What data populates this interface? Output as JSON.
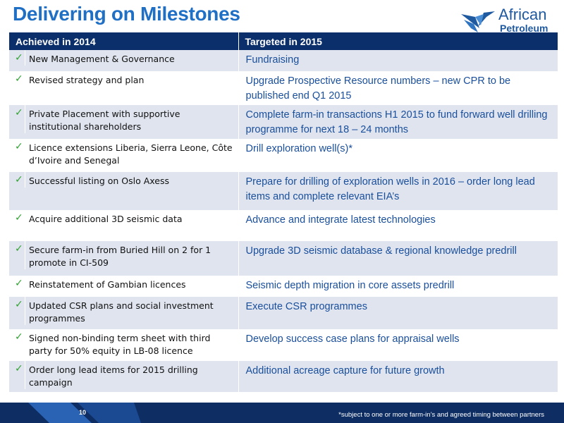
{
  "slide": {
    "title": "Delivering on Milestones",
    "page_number": "10",
    "footnote": "*subject to one or more farm-in’s and  agreed timing between partners"
  },
  "logo": {
    "line1": "African",
    "line2": "Petroleum"
  },
  "table": {
    "headers": {
      "achieved": "Achieved in 2014",
      "targeted": "Targeted in 2015"
    },
    "rows": [
      {
        "achieved": "New Management & Governance",
        "targeted": "Fundraising"
      },
      {
        "achieved": "Revised strategy and plan",
        "targeted": "Upgrade Prospective Resource numbers – new CPR to be published end Q1 2015"
      },
      {
        "achieved": "Private Placement with supportive institutional shareholders",
        "targeted": "Complete farm-in transactions H1 2015 to fund forward well drilling programme for next 18 – 24 months"
      },
      {
        "achieved": "Licence extensions Liberia, Sierra Leone, Côte d’Ivoire  and Senegal",
        "targeted": "Drill exploration well(s)*"
      },
      {
        "achieved": "Successful listing on Oslo Axess",
        "targeted": "Prepare for drilling of exploration wells in 2016 – order long lead items and complete relevant EIA’s"
      },
      {
        "achieved": "Acquire additional 3D seismic data",
        "targeted": "Advance and integrate latest technologies"
      },
      {
        "achieved": "Secure farm-in from Buried Hill on 2 for 1 promote in CI-509",
        "targeted": "Upgrade 3D seismic database & regional knowledge predrill"
      },
      {
        "achieved": "Reinstatement of  Gambian licences",
        "targeted": "Seismic depth migration in core assets predrill"
      },
      {
        "achieved": "Updated CSR plans and social investment programmes",
        "targeted": "Execute CSR programmes"
      },
      {
        "achieved": "Signed non-binding term sheet with third party for 50% equity in LB-08 licence",
        "targeted": "Develop success case plans for appraisal wells"
      },
      {
        "achieved": "Order long lead items for 2015 drilling campaign",
        "targeted": "Additional acreage capture for future growth"
      }
    ]
  },
  "colors": {
    "title": "#1f6fc5",
    "header_bg": "#0b2f6b",
    "shaded_row": "#dfe4ee",
    "target_text": "#1a4f9c",
    "check": "#33a333",
    "footer_bg": "#0d2d63"
  },
  "icons": {
    "row_marker": "check-icon",
    "logo_mark": "bird-logo-icon"
  }
}
